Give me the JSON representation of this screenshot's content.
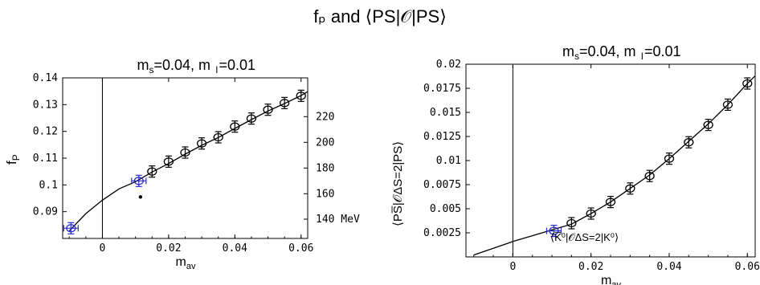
{
  "page_title": "fₚ and ⟨PS|𝒪|PS⟩",
  "chart_data": [
    {
      "type": "scatter",
      "title": "mₛ=0.04, mₗ=0.01",
      "xlabel": "mₐᵥ",
      "ylabel": "fₚ",
      "xlim": [
        -0.012,
        0.062
      ],
      "ylim": [
        0.08,
        0.14
      ],
      "xticks": [
        "0",
        "0.02",
        "0.04",
        "0.06"
      ],
      "yticks": [
        "0.09",
        "0.1",
        "0.11",
        "0.12",
        "0.13",
        "0.14"
      ],
      "right_axis_ticks": [
        "140 MeV",
        "160",
        "180",
        "200",
        "220"
      ],
      "right_axis_values": [
        0.0872,
        0.0967,
        0.1063,
        0.1159,
        0.1255
      ],
      "fit_curve": {
        "x": [
          -0.01,
          -0.005,
          0.0,
          0.005,
          0.01,
          0.015,
          0.02,
          0.025,
          0.03,
          0.035,
          0.04,
          0.045,
          0.05,
          0.055,
          0.06,
          0.062
        ],
        "y": [
          0.0828,
          0.0893,
          0.0943,
          0.0985,
          0.1012,
          0.1048,
          0.108,
          0.1115,
          0.1148,
          0.1177,
          0.1211,
          0.1244,
          0.1276,
          0.1304,
          0.1334,
          0.1349
        ]
      },
      "series": [
        {
          "color": "#000000",
          "points": [
            {
              "x": 0.015,
              "y": 0.105
            },
            {
              "x": 0.02,
              "y": 0.1087
            },
            {
              "x": 0.025,
              "y": 0.1121
            },
            {
              "x": 0.03,
              "y": 0.1155
            },
            {
              "x": 0.035,
              "y": 0.1178
            },
            {
              "x": 0.04,
              "y": 0.1218
            },
            {
              "x": 0.045,
              "y": 0.1248
            },
            {
              "x": 0.05,
              "y": 0.1281
            },
            {
              "x": 0.055,
              "y": 0.1306
            },
            {
              "x": 0.06,
              "y": 0.1333
            }
          ]
        },
        {
          "color": "#2a2ad0",
          "points": [
            {
              "x": -0.0095,
              "y": 0.0838
            },
            {
              "x": 0.011,
              "y": 0.1015
            }
          ]
        },
        {
          "color": "#000000",
          "marker": "dot",
          "points": [
            {
              "x": 0.0115,
              "y": 0.0955
            }
          ]
        }
      ]
    },
    {
      "type": "scatter",
      "title": "mₛ=0.04, mₗ=0.01",
      "xlabel": "mₐᵥ",
      "ylabel": "⟨PS̅|𝒪ΔS=2|PS⟩",
      "xlim": [
        -0.012,
        0.062
      ],
      "ylim": [
        0.0,
        0.02
      ],
      "xticks": [
        "0",
        "0.02",
        "0.04",
        "0.06"
      ],
      "yticks": [
        "0.0025",
        "0.005",
        "0.0075",
        "0.01",
        "0.0125",
        "0.015",
        "0.0175",
        "0.02"
      ],
      "annotation": "⟨K̅⁰|𝒪ΔS=2|K⁰⟩",
      "fit_curve": {
        "x": [
          -0.01,
          -0.005,
          0.0,
          0.005,
          0.01,
          0.015,
          0.02,
          0.025,
          0.03,
          0.035,
          0.04,
          0.045,
          0.05,
          0.055,
          0.06,
          0.062
        ],
        "y": [
          0.0002,
          0.0009,
          0.0016,
          0.0022,
          0.0028,
          0.0034,
          0.0045,
          0.0057,
          0.0071,
          0.0085,
          0.0102,
          0.012,
          0.0138,
          0.0158,
          0.018,
          0.0188
        ]
      },
      "series": [
        {
          "color": "#000000",
          "points": [
            {
              "x": 0.015,
              "y": 0.0035
            },
            {
              "x": 0.02,
              "y": 0.0045
            },
            {
              "x": 0.025,
              "y": 0.0057
            },
            {
              "x": 0.03,
              "y": 0.0071
            },
            {
              "x": 0.035,
              "y": 0.0084
            },
            {
              "x": 0.04,
              "y": 0.0102
            },
            {
              "x": 0.045,
              "y": 0.0119
            },
            {
              "x": 0.05,
              "y": 0.0137
            },
            {
              "x": 0.055,
              "y": 0.0158
            },
            {
              "x": 0.06,
              "y": 0.018
            }
          ]
        },
        {
          "color": "#2a2ad0",
          "points": [
            {
              "x": 0.0105,
              "y": 0.0027
            }
          ]
        }
      ]
    }
  ]
}
